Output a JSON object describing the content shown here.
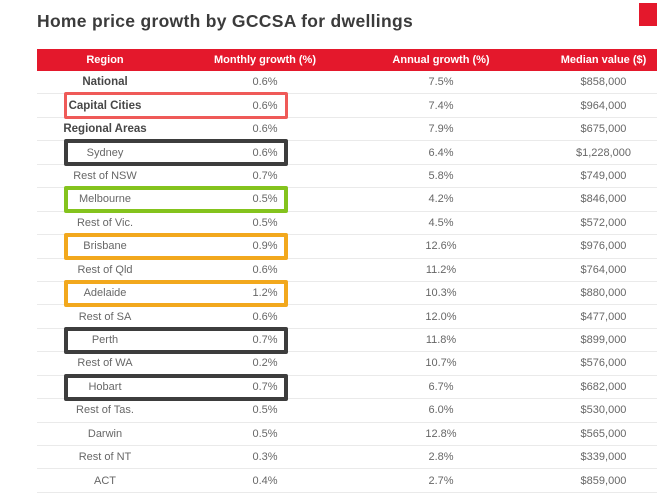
{
  "page": {
    "title": "Home price growth by GCCSA for dwellings"
  },
  "colors": {
    "brand_red": "#e4182c",
    "title_color": "#3b3b3b",
    "text": "#676767",
    "bold_text": "#474747",
    "separator": "#eaeaea",
    "highlights": {
      "red": "#ef5a58",
      "dark": "#3d3d3d",
      "green": "#84c31d",
      "amber": "#f2a81d"
    }
  },
  "table": {
    "columns": [
      "Region",
      "Monthly growth (%)",
      "Annual growth (%)",
      "Median value ($)"
    ],
    "rows": [
      {
        "region": "National",
        "monthly": "0.6%",
        "annual": "7.5%",
        "median": "$858,000",
        "bold": true,
        "highlight": null
      },
      {
        "region": "Capital Cities",
        "monthly": "0.6%",
        "annual": "7.4%",
        "median": "$964,000",
        "bold": true,
        "highlight": "red"
      },
      {
        "region": "Regional Areas",
        "monthly": "0.6%",
        "annual": "7.9%",
        "median": "$675,000",
        "bold": true,
        "highlight": null
      },
      {
        "region": "Sydney",
        "monthly": "0.6%",
        "annual": "6.4%",
        "median": "$1,228,000",
        "bold": false,
        "highlight": "dark"
      },
      {
        "region": "Rest of NSW",
        "monthly": "0.7%",
        "annual": "5.8%",
        "median": "$749,000",
        "bold": false,
        "highlight": null
      },
      {
        "region": "Melbourne",
        "monthly": "0.5%",
        "annual": "4.2%",
        "median": "$846,000",
        "bold": false,
        "highlight": "green"
      },
      {
        "region": "Rest of Vic.",
        "monthly": "0.5%",
        "annual": "4.5%",
        "median": "$572,000",
        "bold": false,
        "highlight": null
      },
      {
        "region": "Brisbane",
        "monthly": "0.9%",
        "annual": "12.6%",
        "median": "$976,000",
        "bold": false,
        "highlight": "amber"
      },
      {
        "region": "Rest of Qld",
        "monthly": "0.6%",
        "annual": "11.2%",
        "median": "$764,000",
        "bold": false,
        "highlight": null
      },
      {
        "region": "Adelaide",
        "monthly": "1.2%",
        "annual": "10.3%",
        "median": "$880,000",
        "bold": false,
        "highlight": "amber"
      },
      {
        "region": "Rest of SA",
        "monthly": "0.6%",
        "annual": "12.0%",
        "median": "$477,000",
        "bold": false,
        "highlight": null
      },
      {
        "region": "Perth",
        "monthly": "0.7%",
        "annual": "11.8%",
        "median": "$899,000",
        "bold": false,
        "highlight": "dark"
      },
      {
        "region": "Rest of WA",
        "monthly": "0.2%",
        "annual": "10.7%",
        "median": "$576,000",
        "bold": false,
        "highlight": null
      },
      {
        "region": "Hobart",
        "monthly": "0.7%",
        "annual": "6.7%",
        "median": "$682,000",
        "bold": false,
        "highlight": "dark"
      },
      {
        "region": "Rest of Tas.",
        "monthly": "0.5%",
        "annual": "6.0%",
        "median": "$530,000",
        "bold": false,
        "highlight": null
      },
      {
        "region": "Darwin",
        "monthly": "0.5%",
        "annual": "12.8%",
        "median": "$565,000",
        "bold": false,
        "highlight": null
      },
      {
        "region": "Rest of NT",
        "monthly": "0.3%",
        "annual": "2.8%",
        "median": "$339,000",
        "bold": false,
        "highlight": null
      },
      {
        "region": "ACT",
        "monthly": "0.4%",
        "annual": "2.7%",
        "median": "$859,000",
        "bold": false,
        "highlight": null
      }
    ]
  },
  "chart_data": {
    "type": "table",
    "title": "Home price growth by GCCSA for dwellings",
    "columns": [
      "Region",
      "Monthly growth (%)",
      "Annual growth (%)",
      "Median value ($)"
    ],
    "rows": [
      [
        "National",
        0.6,
        7.5,
        858000
      ],
      [
        "Capital Cities",
        0.6,
        7.4,
        964000
      ],
      [
        "Regional Areas",
        0.6,
        7.9,
        675000
      ],
      [
        "Sydney",
        0.6,
        6.4,
        1228000
      ],
      [
        "Rest of NSW",
        0.7,
        5.8,
        749000
      ],
      [
        "Melbourne",
        0.5,
        4.2,
        846000
      ],
      [
        "Rest of Vic.",
        0.5,
        4.5,
        572000
      ],
      [
        "Brisbane",
        0.9,
        12.6,
        976000
      ],
      [
        "Rest of Qld",
        0.6,
        11.2,
        764000
      ],
      [
        "Adelaide",
        1.2,
        10.3,
        880000
      ],
      [
        "Rest of SA",
        0.6,
        12.0,
        477000
      ],
      [
        "Perth",
        0.7,
        11.8,
        899000
      ],
      [
        "Rest of WA",
        0.2,
        10.7,
        576000
      ],
      [
        "Hobart",
        0.7,
        6.7,
        682000
      ],
      [
        "Rest of Tas.",
        0.5,
        6.0,
        530000
      ],
      [
        "Darwin",
        0.5,
        12.8,
        565000
      ],
      [
        "Rest of NT",
        0.3,
        2.8,
        339000
      ],
      [
        "ACT",
        0.4,
        2.7,
        859000
      ]
    ],
    "annotations": [
      "Capital Cities row outlined in salmon red",
      "Sydney, Perth, Hobart rows outlined in dark charcoal",
      "Melbourne row outlined in green",
      "Brisbane, Adelaide rows outlined in amber"
    ],
    "legend_position": "none",
    "grid": "horizontal separators only"
  }
}
